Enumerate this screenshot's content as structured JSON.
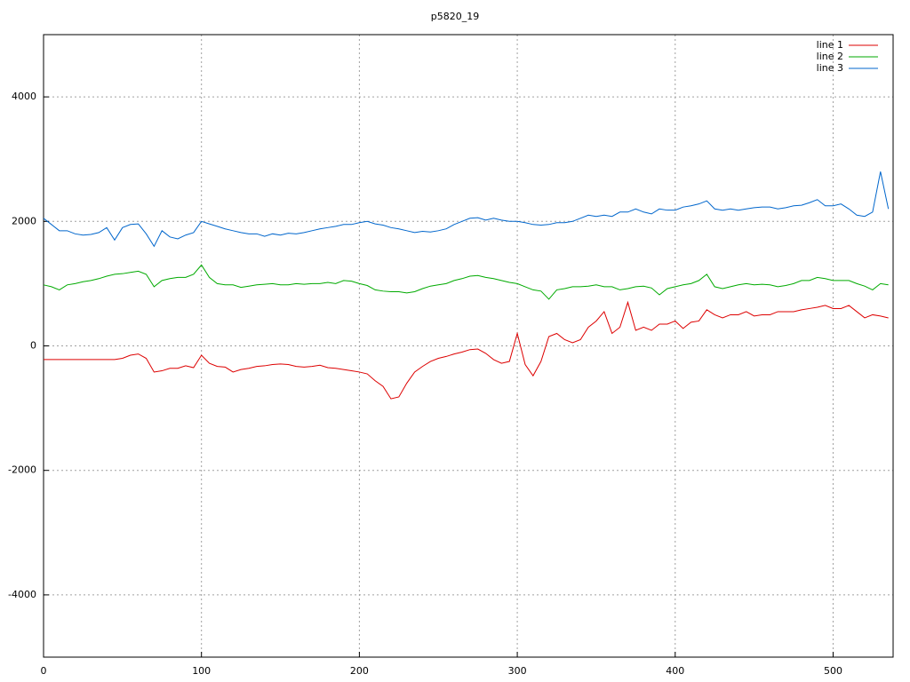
{
  "chart_data": {
    "type": "line",
    "title": "p5820_19",
    "x": [
      0,
      5,
      10,
      15,
      20,
      25,
      30,
      35,
      40,
      45,
      50,
      55,
      60,
      65,
      70,
      75,
      80,
      85,
      90,
      95,
      100,
      105,
      110,
      115,
      120,
      125,
      130,
      135,
      140,
      145,
      150,
      155,
      160,
      165,
      170,
      175,
      180,
      185,
      190,
      195,
      200,
      205,
      210,
      215,
      220,
      225,
      230,
      235,
      240,
      245,
      250,
      255,
      260,
      265,
      270,
      275,
      280,
      285,
      290,
      295,
      300,
      305,
      310,
      315,
      320,
      325,
      330,
      335,
      340,
      345,
      350,
      355,
      360,
      365,
      370,
      375,
      380,
      385,
      390,
      395,
      400,
      405,
      410,
      415,
      420,
      425,
      430,
      435,
      440,
      445,
      450,
      455,
      460,
      465,
      470,
      475,
      480,
      485,
      490,
      495,
      500,
      505,
      510,
      515,
      520,
      525,
      530,
      535
    ],
    "series": [
      {
        "name": "line 1",
        "color": "#dd0000",
        "values": [
          -220,
          -220,
          -220,
          -220,
          -220,
          -220,
          -220,
          -220,
          -220,
          -220,
          -200,
          -150,
          -130,
          -200,
          -420,
          -400,
          -360,
          -360,
          -320,
          -350,
          -150,
          -280,
          -330,
          -340,
          -420,
          -380,
          -360,
          -330,
          -320,
          -300,
          -290,
          -300,
          -330,
          -340,
          -330,
          -310,
          -350,
          -360,
          -380,
          -400,
          -420,
          -450,
          -560,
          -650,
          -850,
          -820,
          -600,
          -420,
          -330,
          -250,
          -200,
          -170,
          -130,
          -100,
          -60,
          -50,
          -120,
          -220,
          -280,
          -250,
          200,
          -300,
          -480,
          -250,
          150,
          200,
          100,
          50,
          100,
          300,
          400,
          550,
          200,
          300,
          700,
          250,
          300,
          250,
          350,
          350,
          400,
          280,
          380,
          400,
          580,
          500,
          450,
          500,
          500,
          550,
          480,
          500,
          500,
          550,
          550,
          550,
          580,
          600,
          620,
          650,
          600,
          600,
          650,
          550,
          450,
          500,
          480,
          450
        ]
      },
      {
        "name": "line 2",
        "color": "#00aa00",
        "values": [
          980,
          950,
          900,
          980,
          1000,
          1030,
          1050,
          1080,
          1120,
          1150,
          1160,
          1180,
          1200,
          1150,
          950,
          1050,
          1080,
          1100,
          1100,
          1150,
          1300,
          1100,
          1000,
          980,
          980,
          940,
          960,
          980,
          990,
          1000,
          980,
          980,
          1000,
          990,
          1000,
          1000,
          1020,
          1000,
          1050,
          1040,
          1000,
          970,
          900,
          880,
          870,
          870,
          850,
          870,
          920,
          960,
          980,
          1000,
          1050,
          1080,
          1120,
          1130,
          1100,
          1080,
          1050,
          1020,
          1000,
          950,
          900,
          880,
          750,
          900,
          920,
          950,
          950,
          960,
          980,
          950,
          950,
          900,
          920,
          950,
          960,
          930,
          820,
          920,
          950,
          980,
          1000,
          1050,
          1150,
          950,
          920,
          950,
          980,
          1000,
          980,
          990,
          980,
          950,
          970,
          1000,
          1050,
          1050,
          1100,
          1080,
          1050,
          1050,
          1050,
          1000,
          960,
          900,
          1000,
          980
        ]
      },
      {
        "name": "line 3",
        "color": "#0066cc",
        "values": [
          2050,
          1950,
          1850,
          1850,
          1800,
          1780,
          1790,
          1820,
          1900,
          1700,
          1900,
          1950,
          1960,
          1800,
          1600,
          1850,
          1750,
          1720,
          1780,
          1820,
          2000,
          1960,
          1920,
          1880,
          1850,
          1820,
          1800,
          1800,
          1760,
          1800,
          1780,
          1810,
          1800,
          1820,
          1850,
          1880,
          1900,
          1920,
          1950,
          1950,
          1980,
          2000,
          1960,
          1940,
          1900,
          1880,
          1850,
          1820,
          1840,
          1830,
          1850,
          1880,
          1950,
          2000,
          2050,
          2060,
          2020,
          2050,
          2020,
          2000,
          2000,
          1980,
          1950,
          1940,
          1950,
          1980,
          1980,
          2000,
          2050,
          2100,
          2080,
          2100,
          2080,
          2150,
          2150,
          2200,
          2150,
          2120,
          2200,
          2180,
          2180,
          2230,
          2250,
          2280,
          2330,
          2200,
          2180,
          2200,
          2180,
          2200,
          2220,
          2230,
          2230,
          2200,
          2220,
          2250,
          2260,
          2300,
          2350,
          2250,
          2250,
          2280,
          2200,
          2100,
          2080,
          2150,
          2800,
          2200
        ]
      }
    ],
    "xlim": [
      0,
      538
    ],
    "ylim": [
      -5000,
      5000
    ],
    "xticks": [
      0,
      100,
      200,
      300,
      400,
      500
    ],
    "yticks": [
      -4000,
      -2000,
      0,
      2000,
      4000
    ],
    "grid": true,
    "legend": "top-right"
  }
}
